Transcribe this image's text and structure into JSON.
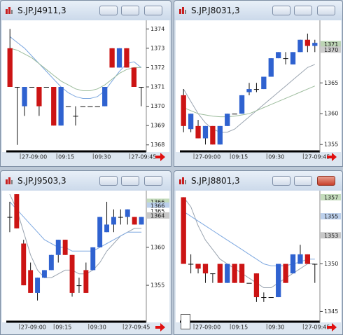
{
  "windows": [
    {
      "title": "S.JP.J4911,3",
      "chart": {
        "type": "candlestick",
        "up_color": "#2f62d0",
        "down_color": "#cc1414",
        "categories": [
          null,
          null,
          "27-09:00",
          null,
          null,
          null,
          null,
          "09:15",
          null,
          null,
          null,
          null,
          "09:30",
          null,
          null,
          null,
          null,
          "27-09:45",
          null
        ],
        "open": [
          1373,
          1371,
          1370,
          1371,
          1371,
          1371,
          1371,
          1369,
          1370,
          1369.5,
          1370,
          1370,
          1370,
          1370,
          1373,
          1372,
          1373,
          1372,
          1371
        ],
        "high": [
          1374,
          1371,
          1371,
          1371,
          1371,
          1371,
          1371,
          1371,
          1370,
          1370,
          1370,
          1370,
          1370,
          1371,
          1373,
          1373,
          1373,
          1372,
          1371
        ],
        "low": [
          1371,
          1368,
          1369.5,
          1371,
          1369.5,
          1371,
          1369,
          1369,
          1370,
          1369,
          1370,
          1370,
          1370,
          1370,
          1372,
          1372,
          1372,
          1371,
          1370
        ],
        "close": [
          1371,
          1371,
          1371,
          1371,
          1370,
          1371,
          1369,
          1371,
          1370,
          1369.5,
          1370,
          1370,
          1370,
          1371,
          1372,
          1373,
          1372,
          1371,
          1371
        ],
        "lines": [
          {
            "color": "#7ea8e0",
            "values": [
              1373.6,
              1373.3,
              1373,
              1372.6,
              1372.2,
              1371.8,
              1371.4,
              1371,
              1370.7,
              1370.5,
              1370.4,
              1370.4,
              1370.5,
              1370.8,
              1371.3,
              1371.8,
              1372.2,
              1372.3,
              1372
            ]
          },
          {
            "color": "#9cbc9c",
            "values": [
              1373,
              1372.9,
              1372.7,
              1372.5,
              1372.2,
              1371.9,
              1371.6,
              1371.3,
              1371.1,
              1370.9,
              1370.8,
              1370.8,
              1370.9,
              1371.1,
              1371.4,
              1371.7,
              1371.9,
              1372,
              1372
            ]
          }
        ],
        "ylim": [
          1367.7,
          1374.3
        ],
        "yticks": [
          1368,
          1369,
          1370,
          1371,
          1372,
          1373,
          1374
        ],
        "price_tags": []
      }
    },
    {
      "title": "S.JP.J8031,3",
      "chart": {
        "type": "candlestick",
        "up_color": "#2f62d0",
        "down_color": "#cc1414",
        "categories": [
          null,
          null,
          "27-09:00",
          null,
          null,
          null,
          null,
          "09:15",
          null,
          null,
          null,
          null,
          "09:30",
          null,
          null,
          null,
          null,
          "27-09:45",
          null
        ],
        "open": [
          1363,
          1357.5,
          1358,
          1356,
          1358,
          1355,
          1358,
          1360,
          1360,
          1363.5,
          1364,
          1364,
          1366,
          1369,
          1369,
          1368,
          1370,
          1372,
          1371
        ],
        "high": [
          1364,
          1360,
          1359,
          1358,
          1358,
          1358,
          1360,
          1360,
          1363,
          1365,
          1365,
          1366,
          1369,
          1370,
          1370,
          1370,
          1372,
          1373,
          1372
        ],
        "low": [
          1357,
          1357,
          1356,
          1355,
          1355,
          1355,
          1358,
          1360,
          1360,
          1363,
          1363.5,
          1364,
          1366,
          1369,
          1368,
          1368,
          1370,
          1370,
          1370
        ],
        "close": [
          1358,
          1360,
          1356,
          1358,
          1355,
          1358,
          1360,
          1360,
          1363,
          1364,
          1364,
          1366,
          1369,
          1370,
          1369,
          1370,
          1372,
          1371,
          1371.5
        ],
        "lines": [
          {
            "color": "#9aa4b0",
            "values": [
              1364,
              1362,
              1360,
              1358.5,
              1357.5,
              1357,
              1357,
              1357.5,
              1358.5,
              1359.5,
              1360.5,
              1361.5,
              1362.5,
              1363.5,
              1364.5,
              1365.5,
              1366.5,
              1367.5,
              1368
            ]
          },
          {
            "color": "#9cbc9c",
            "values": [
              1361,
              1360.5,
              1360,
              1359.8,
              1359.6,
              1359.5,
              1359.5,
              1359.6,
              1359.8,
              1360,
              1360.5,
              1361,
              1361.5,
              1362,
              1362.5,
              1363,
              1363.5,
              1364,
              1364.5
            ]
          }
        ],
        "ylim": [
          1354,
          1374.7
        ],
        "yticks": [
          1355,
          1360,
          1365
        ],
        "price_tags": [
          {
            "value": 1371.3,
            "label": "1371",
            "color": "#bcd4b4"
          },
          {
            "value": 1370.4,
            "label": "1370",
            "color": "#cccccc"
          }
        ]
      }
    },
    {
      "title": "S.JP.J9503,3",
      "chart": {
        "type": "candlestick",
        "up_color": "#2f62d0",
        "down_color": "#cc1414",
        "categories": [
          null,
          null,
          "27-09:00",
          null,
          null,
          null,
          null,
          "09:15",
          null,
          null,
          null,
          null,
          "09:30",
          null,
          null,
          null,
          null,
          "27-09:45",
          null,
          null
        ],
        "open": [
          1364,
          1367,
          1360.5,
          1357,
          1354,
          1356,
          1357,
          1359,
          1361,
          1359,
          1355,
          1357,
          1357,
          1360,
          1362,
          1363,
          1364,
          1364,
          1364,
          1363
        ],
        "high": [
          1366,
          1367,
          1361,
          1358,
          1356,
          1357,
          1359,
          1361,
          1361,
          1359,
          1356,
          1358,
          1360,
          1364,
          1366,
          1365,
          1365,
          1365,
          1364,
          1364
        ],
        "low": [
          1362,
          1362.5,
          1355,
          1354,
          1353,
          1356,
          1357,
          1358,
          1359,
          1353.5,
          1354,
          1354,
          1357,
          1360,
          1362,
          1362,
          1363,
          1363,
          1363,
          1363
        ],
        "close": [
          1364,
          1362.5,
          1355,
          1354,
          1356,
          1357,
          1359,
          1361,
          1359,
          1354,
          1355,
          1354,
          1360,
          1364,
          1363,
          1364,
          1364,
          1365,
          1363,
          1364
        ],
        "lines": [
          {
            "color": "#9aa4b0",
            "values": [
              1367,
              1365,
              1362,
              1359,
              1357,
              1356,
              1356,
              1356.5,
              1357,
              1357,
              1356.5,
              1356.5,
              1357,
              1358,
              1359.5,
              1360.5,
              1361.5,
              1362,
              1362.5,
              1362.5
            ]
          },
          {
            "color": "#7ea8e0",
            "values": [
              1366,
              1365,
              1364,
              1363,
              1362,
              1361,
              1360.5,
              1360,
              1360,
              1359.5,
              1359.5,
              1359.5,
              1359.5,
              1360,
              1360.5,
              1361,
              1361.5,
              1362,
              1362,
              1362
            ]
          }
        ],
        "ylim": [
          1350.3,
          1367.1
        ],
        "yticks": [
          1355,
          1360
        ],
        "price_tags": [
          {
            "value": 1366,
            "color": "#c4dcbc"
          },
          {
            "value": 1365.5,
            "label": "1366",
            "color": "#bcd0ec"
          },
          {
            "value": 1364.8,
            "label": "1365",
            "color": "#ffffff"
          },
          {
            "value": 1364.2,
            "label": "1364",
            "color": "#c8c8c8"
          }
        ]
      }
    },
    {
      "title": "S.JP.J8801,3",
      "chart": {
        "type": "candlestick",
        "up_color": "#2f62d0",
        "down_color": "#cc1414",
        "categories": [
          null,
          null,
          "27-09:00",
          null,
          null,
          null,
          null,
          "09:15",
          null,
          null,
          null,
          null,
          "09:30",
          null,
          null,
          null,
          null,
          "27-09:45",
          null
        ],
        "open": [
          1357,
          1350,
          1350,
          1350,
          1349,
          1350,
          1348,
          1350,
          1350,
          1348,
          1349,
          1346.5,
          1346.5,
          1346.5,
          1350,
          1349,
          1350,
          1351,
          1350
        ],
        "high": [
          1357,
          1351,
          1350,
          1350,
          1349,
          1350,
          1350,
          1350,
          1350,
          1348,
          1349,
          1347,
          1346.5,
          1350,
          1350,
          1351,
          1352,
          1351,
          1350
        ],
        "low": [
          1350,
          1349,
          1349,
          1348,
          1348,
          1348,
          1348,
          1348,
          1348,
          1348,
          1346,
          1346,
          1346.5,
          1346.5,
          1348,
          1349,
          1350,
          1350,
          1348
        ],
        "close": [
          1350,
          1350,
          1349.5,
          1349,
          1349,
          1348,
          1350,
          1348,
          1348,
          1348,
          1346.5,
          1346.5,
          1346.5,
          1350,
          1348,
          1351,
          1351,
          1350,
          1350
        ],
        "lines": [
          {
            "color": "#9aa4b0",
            "values": [
              1357,
              1356,
              1354,
              1352.5,
              1351.5,
              1350.5,
              1350,
              1349.5,
              1349,
              1348.5,
              1348,
              1347.5,
              1347.5,
              1348,
              1348.5,
              1349,
              1349.5,
              1350,
              1350
            ]
          },
          {
            "color": "#7ea8e0",
            "values": [
              1355.5,
              1355,
              1354.5,
              1354,
              1353.5,
              1353,
              1352.5,
              1352,
              1351.5,
              1351,
              1350.5,
              1350,
              1349.8,
              1349.8,
              1349.8,
              1350,
              1350.2,
              1350.5,
              1350.5
            ]
          }
        ],
        "ylim": [
          1344,
          1357.4
        ],
        "yticks": [
          1345,
          1350
        ],
        "price_tags": [
          {
            "value": 1357,
            "color": "#c4dcbc"
          },
          {
            "value": 1355,
            "color": "#bcd0ec"
          },
          {
            "value": 1353,
            "color": "#c8c8c8"
          }
        ]
      }
    }
  ]
}
